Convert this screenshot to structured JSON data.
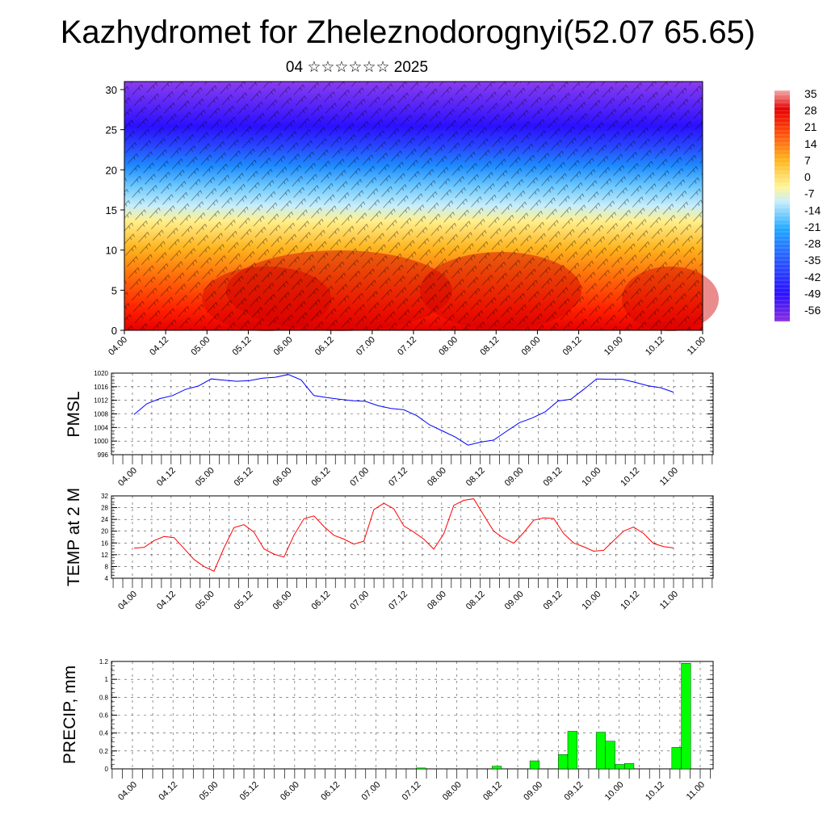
{
  "header": {
    "title": "Kazhydromet for Zheleznodorognyi(52.07 65.65)",
    "subtitle": "04 ☆☆☆☆☆☆ 2025"
  },
  "colors": {
    "pmsl_line": "#0000ff",
    "temp_line": "#ff0000",
    "precip_bar": "#00ff00",
    "precip_bar_edge": "#000000"
  },
  "chart_data": [
    {
      "type": "heatmap",
      "title": "",
      "xlabel": "",
      "ylabel": "",
      "x_tick_labels": [
        "04.00",
        "04.12",
        "05.00",
        "05.12",
        "06.00",
        "06.12",
        "07.00",
        "07.12",
        "08.00",
        "08.12",
        "09.00",
        "09.12",
        "10.00",
        "10.12",
        "11.00"
      ],
      "y_ticks": [
        0,
        5,
        10,
        15,
        20,
        25,
        30
      ],
      "ylim": [
        0,
        31
      ],
      "colorbar_labels": [
        "35",
        "28",
        "21",
        "14",
        "7",
        "0",
        "-7",
        "-14",
        "-21",
        "-28",
        "-35",
        "-42",
        "-49",
        "-56"
      ],
      "colorbar_range": [
        -60,
        37
      ],
      "overlay": "wind barbs"
    },
    {
      "type": "line",
      "ylabel": "PMSL",
      "x_tick_labels": [
        "04.00",
        "04.12",
        "05.00",
        "05.12",
        "06.00",
        "06.12",
        "07.00",
        "07.12",
        "08.00",
        "08.12",
        "09.00",
        "09.12",
        "10.00",
        "10.12",
        "11.00"
      ],
      "y_ticks": [
        996,
        1000,
        1004,
        1008,
        1012,
        1016,
        1020
      ],
      "ylim": [
        996,
        1020
      ],
      "grid": true,
      "series": [
        {
          "values": [
            1007.8,
            1011,
            1012.5,
            1013.4,
            1015.2,
            1016.2,
            1018.3,
            1017.9,
            1017.6,
            1017.8,
            1018.5,
            1018.8,
            1019.6,
            1018,
            1013.4,
            1012.8,
            1012.3,
            1011.9,
            1011.7,
            1010.4,
            1009.6,
            1009.2,
            1007.5,
            1004.8,
            1003,
            1001.2,
            998.8,
            999.7,
            1000.3,
            1002.9,
            1005.4,
            1006.8,
            1008.6,
            1011.8,
            1012.3,
            1015.2,
            1018.3,
            1018.2,
            1018.2,
            1017.3,
            1016.3,
            1015.7,
            1014.4
          ]
        }
      ]
    },
    {
      "type": "line",
      "ylabel": "TEMP at 2 M",
      "x_tick_labels": [
        "04.00",
        "04.12",
        "05.00",
        "05.12",
        "06.00",
        "06.12",
        "07.00",
        "07.12",
        "08.00",
        "08.12",
        "09.00",
        "09.12",
        "10.00",
        "10.12",
        "11.00"
      ],
      "y_ticks": [
        4,
        8,
        12,
        16,
        20,
        24,
        28,
        32
      ],
      "ylim": [
        4,
        32
      ],
      "grid": true,
      "series": [
        {
          "values": [
            14.2,
            14.5,
            16.8,
            18.2,
            17.8,
            14.1,
            10.4,
            8,
            6.4,
            14.3,
            21.2,
            22.2,
            19.7,
            14,
            12.2,
            11.2,
            18.6,
            24.2,
            25.2,
            21.6,
            18.6,
            17.3,
            15.6,
            16.6,
            27.3,
            29.5,
            27.6,
            21.8,
            19.7,
            17.3,
            13.9,
            19.1,
            28.8,
            30.5,
            31,
            25.4,
            20,
            17.6,
            15.9,
            19.5,
            23.7,
            24.5,
            24.3,
            19.2,
            16,
            14.7,
            13.2,
            13.5,
            16.8,
            20,
            21.4,
            19.2,
            15.8,
            14.8,
            14.3
          ]
        }
      ]
    },
    {
      "type": "bar",
      "ylabel": "PRECIP, mm",
      "x_tick_labels": [
        "04.00",
        "04.12",
        "05.00",
        "05.12",
        "06.00",
        "06.12",
        "07.00",
        "07.12",
        "08.00",
        "08.12",
        "09.00",
        "09.12",
        "10.00",
        "10.12",
        "11.00"
      ],
      "y_ticks": [
        0.0,
        0.2,
        0.4,
        0.6,
        0.8,
        1.0,
        1.2
      ],
      "ylim": [
        0,
        1.2
      ],
      "grid": true,
      "bars": [
        {
          "x": 31,
          "value": 0.01
        },
        {
          "x": 39,
          "value": 0.03
        },
        {
          "x": 43,
          "value": 0.09
        },
        {
          "x": 46,
          "value": 0.16
        },
        {
          "x": 47,
          "value": 0.42
        },
        {
          "x": 50,
          "value": 0.41
        },
        {
          "x": 51,
          "value": 0.31
        },
        {
          "x": 52,
          "value": 0.05
        },
        {
          "x": 53,
          "value": 0.06
        },
        {
          "x": 58,
          "value": 0.24
        },
        {
          "x": 59,
          "value": 1.18
        }
      ]
    }
  ]
}
